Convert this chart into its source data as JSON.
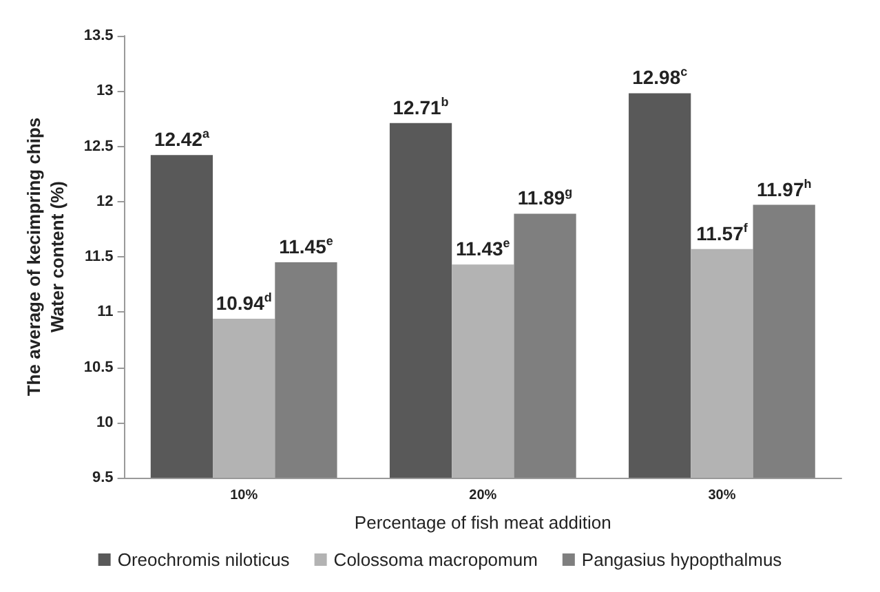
{
  "chart_data": {
    "type": "bar",
    "xlabel": "Percentage of fish meat addition",
    "ylabel": "The average of kecimpring chips\nWater content (%)",
    "categories": [
      "10%",
      "20%",
      "30%"
    ],
    "series": [
      {
        "name": "Oreochromis niloticus",
        "color": "#595959",
        "values": [
          12.42,
          12.71,
          12.98
        ],
        "value_labels": [
          "12.42$^{a}$",
          "12.71$^{b}$",
          "12.98$^{c}$"
        ]
      },
      {
        "name": "Colossoma macropomum",
        "color": "#b3b3b3",
        "values": [
          10.94,
          11.43,
          11.57
        ],
        "value_labels": [
          "10.94$^{d}$",
          "11.43$^{e}$",
          "11.57$^{f}$"
        ]
      },
      {
        "name": "Pangasius hypopthalmus",
        "color": "#7f7f7f",
        "values": [
          11.45,
          11.89,
          11.97
        ],
        "value_labels": [
          "11.45$^{e}$",
          "11.89$^{g}$",
          "11.97$^{h}$"
        ]
      }
    ],
    "ylim": [
      9.5,
      13.5
    ],
    "yticks": [
      9.5,
      10,
      10.5,
      11,
      11.5,
      12,
      12.5,
      13,
      13.5
    ],
    "grid": false,
    "legend": "bottom"
  }
}
